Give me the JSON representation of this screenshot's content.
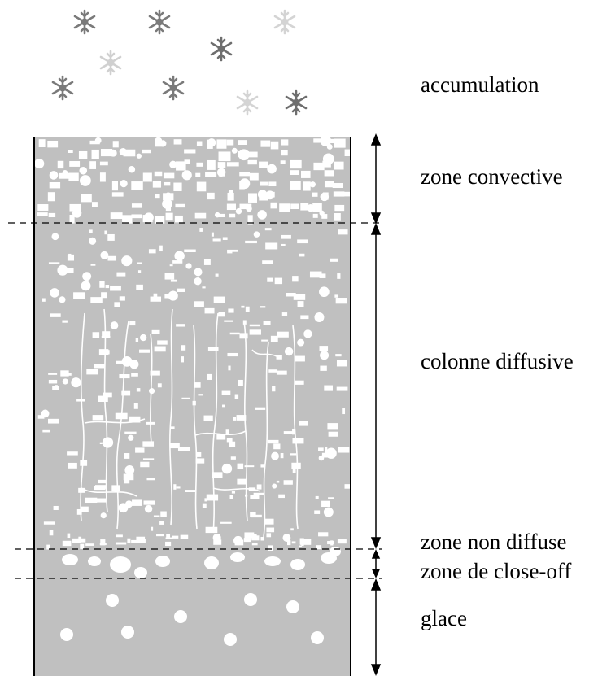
{
  "labels": {
    "accumulation": "accumulation",
    "convective": "zone convective",
    "diffusive": "colonne diffusive",
    "non_diffuse": "zone non diffuse",
    "close_off": "zone de close-off",
    "ice": "glace"
  },
  "colors": {
    "firn_gray": "#c0c0c0",
    "pore_white": "#ffffff",
    "line": "#000000",
    "snowflake_dark": "#707070",
    "snowflake_light": "#cccccc"
  },
  "icons": {
    "snowflake": "snowflake-icon"
  }
}
